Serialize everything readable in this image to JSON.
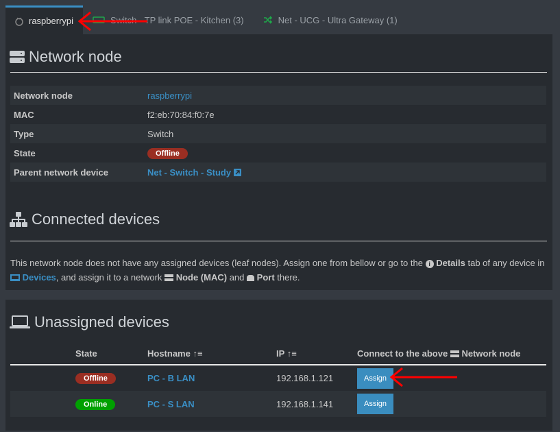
{
  "tabs": [
    {
      "label": "raspberrypi",
      "icon": "raspberry-pi-icon",
      "active": true
    },
    {
      "label": "Switch - TP link POE - Kitchen (3)",
      "icon": "switch-icon"
    },
    {
      "label": "Net - UCG - Ultra Gateway (1)",
      "icon": "shuffle-icon"
    }
  ],
  "node": {
    "title": "Network node",
    "rows": [
      {
        "label": "Network node",
        "value": "raspberrypi"
      },
      {
        "label": "MAC",
        "value": "f2:eb:70:84:f0:7e"
      },
      {
        "label": "Type",
        "value": "Switch"
      },
      {
        "label": "State",
        "value": "Offline"
      },
      {
        "label": "Parent network device",
        "value": "Net - Switch - Study"
      }
    ]
  },
  "connected": {
    "title": "Connected devices",
    "note": {
      "p1": "This network node does not have any assigned devices (leaf nodes). Assign one from bellow or go to the",
      "details": "Details",
      "p2": "tab of any device in",
      "devices": "Devices",
      "p3": ", and assign it to a network",
      "node": "Node (MAC)",
      "p4": "and",
      "port": "Port",
      "p5": "there."
    }
  },
  "unassigned": {
    "title": "Unassigned devices",
    "headers": {
      "state": "State",
      "hostname": "Hostname",
      "ip": "IP",
      "connect_a": "Connect to the above",
      "connect_b": "Network node"
    },
    "rows": [
      {
        "state": "Offline",
        "hostname": "PC - B LAN",
        "ip": "192.168.1.121",
        "action": "Assign"
      },
      {
        "state": "Online",
        "hostname": "PC - S LAN",
        "ip": "192.168.1.141",
        "action": "Assign"
      }
    ]
  },
  "colors": {
    "accent": "#3a8fc5",
    "offline": "#9a2e22",
    "online": "#00a000",
    "annotation": "#ff0000"
  }
}
